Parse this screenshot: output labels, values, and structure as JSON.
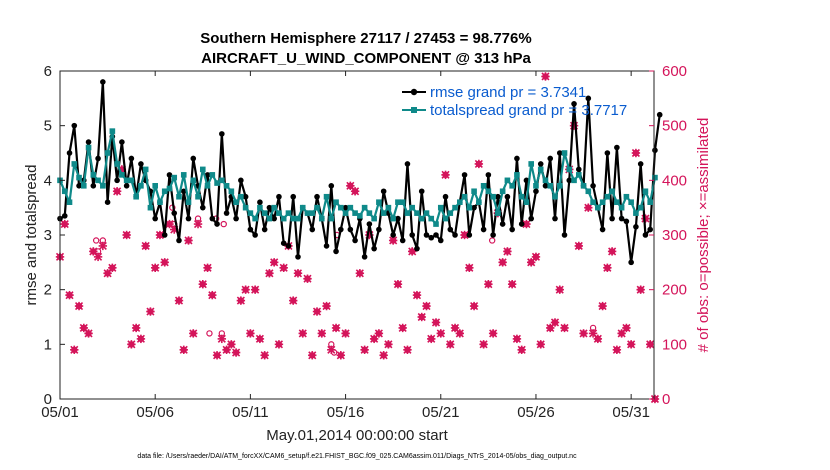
{
  "chart_data": {
    "type": "line",
    "title_line1": "Southern Hemisphere 27117 / 27453 = 98.776%",
    "title_line2": "AIRCRAFT_U_WIND_COMPONENT @ 313 hPa",
    "xlabel": "May.01,2014 00:00:00 start",
    "ylabel_left": "rmse and totalspread",
    "ylabel_right": "# of obs: o=possible; ×=assimilated",
    "footer": "data file: /Users/raeder/DAI/ATM_forcXX/CAM6_setup/f.e21.FHIST_BGC.f09_025.CAM6assim.011/Diags_NTrS_2014-05/obs_diag_output.nc",
    "xlim": [
      1,
      32.2
    ],
    "ylim_left": [
      0,
      6
    ],
    "ylim_right": [
      0,
      600
    ],
    "xticks": [
      1,
      6,
      11,
      16,
      21,
      26,
      31
    ],
    "xtick_labels": [
      "05/01",
      "05/06",
      "05/11",
      "05/16",
      "05/21",
      "05/26",
      "05/31"
    ],
    "yticks_left": [
      0,
      1,
      2,
      3,
      4,
      5,
      6
    ],
    "yticks_right": [
      0,
      100,
      200,
      300,
      400,
      500,
      600
    ],
    "colors": {
      "rmse": "#000000",
      "spread": "#0f8a8a",
      "obs": "#d4145a",
      "legend_text": "#0a5ccf"
    },
    "series": [
      {
        "name": "rmse grand pr = 3.7341",
        "color": "#000000",
        "axis": "left",
        "values": [
          3.3,
          3.35,
          4.5,
          5.0,
          3.9,
          4.0,
          4.7,
          3.9,
          4.4,
          5.8,
          3.6,
          4.8,
          4.0,
          4.7,
          3.9,
          4.4,
          3.7,
          4.3,
          4.0,
          3.8,
          3.3,
          3.6,
          3.0,
          4.1,
          3.4,
          2.9,
          3.8,
          3.3,
          4.4,
          3.9,
          3.5,
          4.1,
          3.3,
          3.2,
          4.85,
          3.4,
          3.7,
          3.3,
          4.0,
          3.7,
          3.1,
          3.0,
          3.6,
          3.1,
          3.5,
          3.3,
          3.7,
          2.85,
          2.8,
          3.7,
          2.6,
          3.5,
          3.4,
          3.1,
          3.7,
          3.3,
          2.8,
          3.9,
          2.7,
          3.1,
          3.5,
          3.1,
          2.9,
          3.3,
          2.6,
          3.2,
          2.75,
          3.1,
          3.8,
          3.4,
          3.0,
          3.3,
          2.9,
          4.3,
          3.0,
          2.75,
          3.8,
          3.0,
          2.95,
          3.0,
          2.9,
          3.7,
          3.1,
          3.0,
          3.6,
          4.1,
          3.0,
          3.5,
          3.6,
          3.1,
          4.1,
          3.0,
          3.7,
          3.2,
          3.7,
          3.1,
          4.4,
          3.2,
          4.0,
          3.3,
          3.8,
          4.3,
          3.9,
          4.4,
          3.3,
          4.5,
          3.0,
          4.0,
          5.4,
          4.2,
          3.9,
          5.5,
          3.9,
          3.5,
          3.1,
          4.5,
          3.3,
          4.6,
          3.3,
          3.25,
          2.5,
          3.15,
          4.3,
          3.0,
          3.1,
          4.55,
          5.2
        ]
      },
      {
        "name": "totalspread grand pr = 3.7717",
        "color": "#0f8a8a",
        "axis": "left",
        "values": [
          4.0,
          3.8,
          3.6,
          4.3,
          4.05,
          3.9,
          4.6,
          4.1,
          4.0,
          3.9,
          4.5,
          4.9,
          4.3,
          4.1,
          4.0,
          4.0,
          3.7,
          3.9,
          4.2,
          3.5,
          3.9,
          3.6,
          3.8,
          3.85,
          4.05,
          3.7,
          4.1,
          3.6,
          4.0,
          3.7,
          4.2,
          3.9,
          4.1,
          3.95,
          4.0,
          3.9,
          3.8,
          3.6,
          3.7,
          3.5,
          3.4,
          3.3,
          3.5,
          3.4,
          3.3,
          3.5,
          3.4,
          3.3,
          3.4,
          3.3,
          3.3,
          3.5,
          3.4,
          3.4,
          3.5,
          3.3,
          3.7,
          3.3,
          3.6,
          3.5,
          3.4,
          3.5,
          3.4,
          3.35,
          3.5,
          3.4,
          3.3,
          3.6,
          3.4,
          3.5,
          3.3,
          3.6,
          3.6,
          3.4,
          3.5,
          3.4,
          3.3,
          3.4,
          3.3,
          3.2,
          3.5,
          3.3,
          3.4,
          3.5,
          3.6,
          3.7,
          3.5,
          3.8,
          3.6,
          3.9,
          3.8,
          3.7,
          3.4,
          3.8,
          4.0,
          3.9,
          4.1,
          3.7,
          3.6,
          4.3,
          3.9,
          4.2,
          4.0,
          3.9,
          3.7,
          3.9,
          4.5,
          4.2,
          4.0,
          4.1,
          3.9,
          3.8,
          3.6,
          3.5,
          3.6,
          3.7,
          3.8,
          3.6,
          3.5,
          3.7,
          3.6,
          3.4,
          3.5,
          3.8,
          3.6,
          4.05
        ]
      },
      {
        "name": "obs possible",
        "color": "#d4145a",
        "axis": "right",
        "marker": "o",
        "values": [
          260,
          320,
          190,
          90,
          170,
          130,
          120,
          270,
          270,
          290,
          230,
          240,
          380,
          420,
          300,
          100,
          130,
          110,
          280,
          160,
          240,
          300,
          250,
          320,
          320,
          180,
          90,
          290,
          120,
          330,
          210,
          240,
          190,
          80,
          120,
          90,
          100,
          85,
          180,
          200,
          120,
          200,
          110,
          80,
          230,
          250,
          100,
          240,
          280,
          180,
          230,
          120,
          220,
          80,
          160,
          120,
          170,
          100,
          130,
          80,
          120,
          390,
          380,
          230,
          90,
          300,
          110,
          120,
          80,
          100,
          290,
          210,
          130,
          90,
          270,
          190,
          150,
          170,
          110,
          140,
          120,
          410,
          100,
          130,
          120,
          300,
          240,
          170,
          430,
          100,
          210,
          120,
          340,
          250,
          270,
          210,
          110,
          90,
          320,
          250,
          260,
          100,
          590,
          130,
          140,
          200,
          130,
          420,
          500,
          280,
          120,
          350,
          130,
          110,
          170,
          240,
          270,
          90,
          120,
          130,
          100,
          450,
          200,
          330,
          100,
          0
        ]
      },
      {
        "name": "obs assimilated",
        "color": "#d4145a",
        "axis": "right",
        "marker": "*",
        "values": [
          260,
          320,
          190,
          90,
          170,
          130,
          120,
          270,
          260,
          280,
          230,
          240,
          380,
          420,
          300,
          100,
          130,
          110,
          280,
          160,
          240,
          300,
          250,
          320,
          310,
          180,
          90,
          290,
          120,
          320,
          210,
          240,
          190,
          80,
          110,
          90,
          100,
          85,
          180,
          200,
          120,
          200,
          110,
          80,
          230,
          250,
          100,
          240,
          280,
          180,
          230,
          120,
          220,
          80,
          160,
          120,
          170,
          90,
          130,
          80,
          120,
          390,
          380,
          230,
          90,
          300,
          110,
          120,
          80,
          100,
          290,
          210,
          130,
          90,
          270,
          190,
          150,
          170,
          110,
          140,
          120,
          410,
          100,
          130,
          120,
          300,
          240,
          170,
          430,
          100,
          210,
          120,
          340,
          250,
          270,
          210,
          110,
          90,
          320,
          250,
          260,
          100,
          590,
          130,
          140,
          200,
          130,
          420,
          500,
          280,
          120,
          350,
          120,
          110,
          170,
          240,
          270,
          90,
          120,
          130,
          100,
          450,
          200,
          330,
          100,
          0
        ]
      }
    ],
    "extra_possible": [
      {
        "x": 15.55,
        "y": 300
      },
      {
        "x": 23.7,
        "y": 290
      },
      {
        "x": 9.2,
        "y": 330
      },
      {
        "x": 8.85,
        "y": 120
      },
      {
        "x": 6.9,
        "y": 350
      },
      {
        "x": 9.6,
        "y": 320
      },
      {
        "x": 2.9,
        "y": 290
      },
      {
        "x": 15.4,
        "y": 85
      }
    ]
  }
}
